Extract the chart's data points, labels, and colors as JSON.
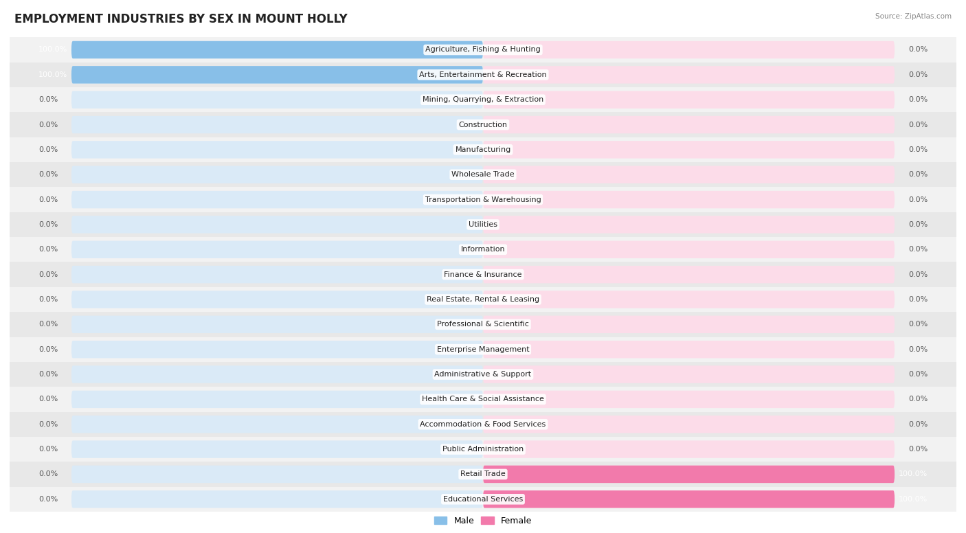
{
  "title": "EMPLOYMENT INDUSTRIES BY SEX IN MOUNT HOLLY",
  "source": "Source: ZipAtlas.com",
  "industries": [
    "Agriculture, Fishing & Hunting",
    "Arts, Entertainment & Recreation",
    "Mining, Quarrying, & Extraction",
    "Construction",
    "Manufacturing",
    "Wholesale Trade",
    "Transportation & Warehousing",
    "Utilities",
    "Information",
    "Finance & Insurance",
    "Real Estate, Rental & Leasing",
    "Professional & Scientific",
    "Enterprise Management",
    "Administrative & Support",
    "Health Care & Social Assistance",
    "Accommodation & Food Services",
    "Public Administration",
    "Retail Trade",
    "Educational Services"
  ],
  "male": [
    100.0,
    100.0,
    0.0,
    0.0,
    0.0,
    0.0,
    0.0,
    0.0,
    0.0,
    0.0,
    0.0,
    0.0,
    0.0,
    0.0,
    0.0,
    0.0,
    0.0,
    0.0,
    0.0
  ],
  "female": [
    0.0,
    0.0,
    0.0,
    0.0,
    0.0,
    0.0,
    0.0,
    0.0,
    0.0,
    0.0,
    0.0,
    0.0,
    0.0,
    0.0,
    0.0,
    0.0,
    0.0,
    100.0,
    100.0
  ],
  "male_color": "#88bfe8",
  "female_color": "#f27aab",
  "bar_bg_male": "#daeaf7",
  "bar_bg_female": "#fcdce9",
  "row_color_even": "#f2f2f2",
  "row_color_odd": "#e8e8e8",
  "title_fontsize": 12,
  "label_fontsize": 8,
  "category_fontsize": 8,
  "legend_fontsize": 9
}
